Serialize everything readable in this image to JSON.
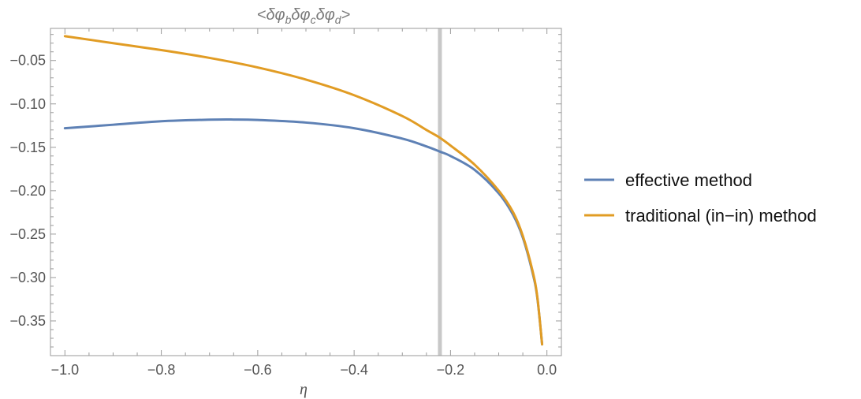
{
  "chart_data": {
    "type": "line",
    "title": {
      "lead": "<δφ",
      "parts": [
        {
          "base": "δφ",
          "sub": "b"
        },
        {
          "base": "δφ",
          "sub": "c"
        },
        {
          "base": "",
          "sub": "d"
        }
      ],
      "tail": ">"
    },
    "xlabel": "η",
    "ylabel": "",
    "xlim": [
      -1.03,
      0.03
    ],
    "ylim": [
      -0.39,
      -0.013
    ],
    "x_ticks": [
      -1.0,
      -0.8,
      -0.6,
      -0.4,
      -0.2,
      0.0
    ],
    "x_tick_labels": [
      "−1.0",
      "−0.8",
      "−0.6",
      "−0.4",
      "−0.2",
      "0.0"
    ],
    "y_ticks": [
      -0.05,
      -0.1,
      -0.15,
      -0.2,
      -0.25,
      -0.3,
      -0.35
    ],
    "y_tick_labels": [
      "−0.05",
      "−0.10",
      "−0.15",
      "−0.20",
      "−0.25",
      "−0.30",
      "−0.35"
    ],
    "grid": false,
    "legend_position": "right",
    "vertical_line": {
      "x": -0.222,
      "color": "#c8c8c8"
    },
    "series": [
      {
        "name": "effective method",
        "color": "#5e81b5",
        "x": [
          -1.0,
          -0.9,
          -0.8,
          -0.7,
          -0.65,
          -0.6,
          -0.5,
          -0.4,
          -0.3,
          -0.25,
          -0.222,
          -0.2,
          -0.15,
          -0.1,
          -0.07,
          -0.05,
          -0.03,
          -0.02,
          -0.01
        ],
        "y": [
          -0.128,
          -0.124,
          -0.12,
          -0.1182,
          -0.118,
          -0.1185,
          -0.1215,
          -0.128,
          -0.14,
          -0.149,
          -0.155,
          -0.16,
          -0.176,
          -0.203,
          -0.228,
          -0.254,
          -0.294,
          -0.323,
          -0.377
        ]
      },
      {
        "name": "traditional (in−in) method",
        "color": "#e19c24",
        "x": [
          -1.0,
          -0.9,
          -0.8,
          -0.7,
          -0.6,
          -0.5,
          -0.4,
          -0.3,
          -0.25,
          -0.222,
          -0.2,
          -0.15,
          -0.1,
          -0.07,
          -0.05,
          -0.03,
          -0.02,
          -0.01
        ],
        "y": [
          -0.022,
          -0.03,
          -0.038,
          -0.047,
          -0.058,
          -0.072,
          -0.09,
          -0.114,
          -0.13,
          -0.139,
          -0.148,
          -0.17,
          -0.2,
          -0.225,
          -0.252,
          -0.292,
          -0.322,
          -0.377
        ]
      }
    ]
  }
}
